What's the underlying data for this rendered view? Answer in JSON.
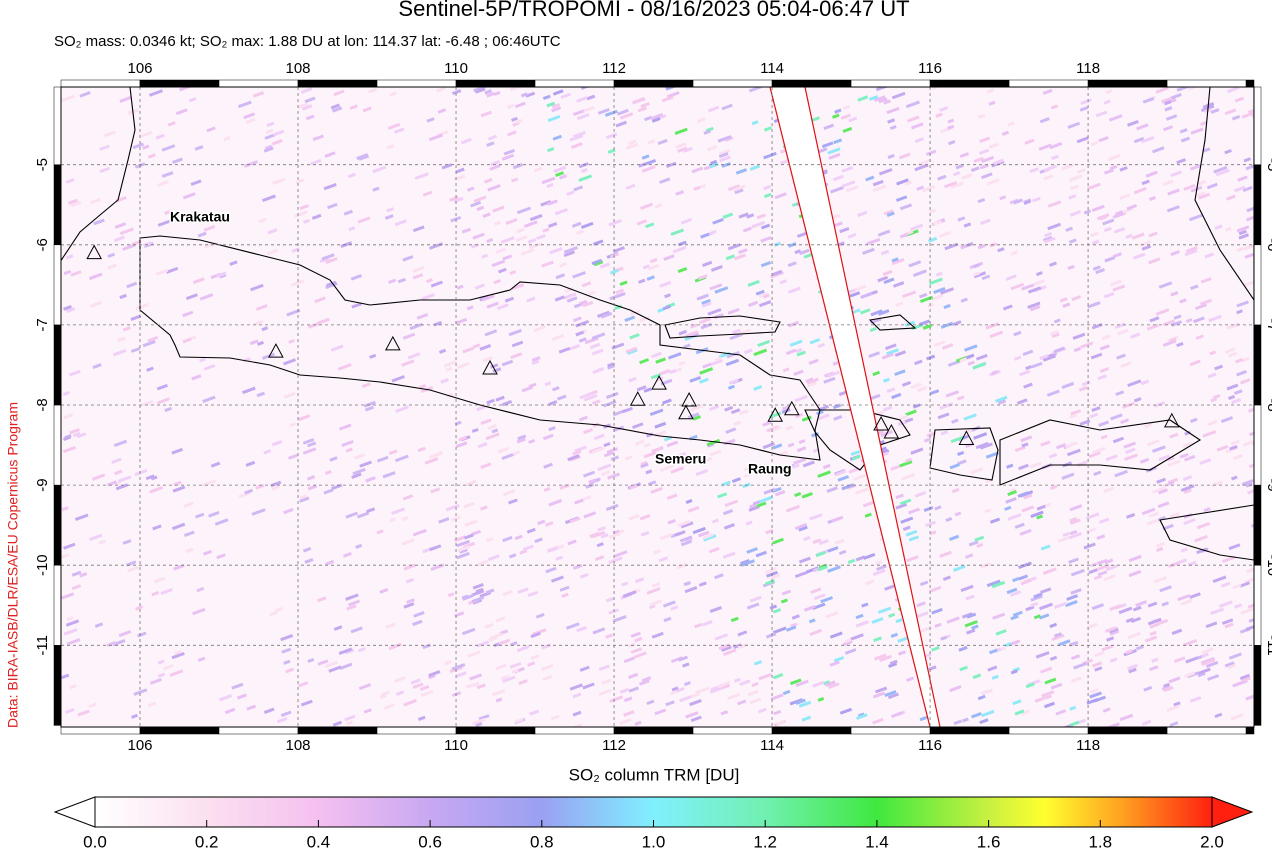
{
  "header": {
    "title": "Sentinel-5P/TROPOMI - 08/16/2023 05:04-06:47 UT",
    "subtitle": "SO₂ mass: 0.0346 kt; SO₂ max: 1.88 DU at lon: 114.37 lat: -6.48 ; 06:46UTC"
  },
  "credit": "Data: BIRA-IASB/DLR/ESA/EU Copernicus Program",
  "map": {
    "xlim": [
      105,
      120.1
    ],
    "ylim": [
      -12.02,
      -4.03
    ],
    "xticks": [
      106,
      108,
      110,
      112,
      114,
      116,
      118
    ],
    "yticks": [
      -5,
      -6,
      -7,
      -8,
      -9,
      -10,
      -11
    ],
    "volcanoes": [
      {
        "lon": 105.42,
        "lat": -6.11
      },
      {
        "lon": 107.72,
        "lat": -7.34
      },
      {
        "lon": 109.2,
        "lat": -7.25
      },
      {
        "lon": 110.43,
        "lat": -7.55
      },
      {
        "lon": 112.3,
        "lat": -7.94
      },
      {
        "lon": 112.57,
        "lat": -7.74
      },
      {
        "lon": 112.95,
        "lat": -7.95
      },
      {
        "lon": 112.91,
        "lat": -8.11
      },
      {
        "lon": 114.04,
        "lat": -8.14
      },
      {
        "lon": 114.25,
        "lat": -8.06
      },
      {
        "lon": 115.38,
        "lat": -8.25
      },
      {
        "lon": 115.51,
        "lat": -8.35
      },
      {
        "lon": 116.46,
        "lat": -8.43
      },
      {
        "lon": 119.06,
        "lat": -8.21
      }
    ],
    "labels": [
      "Krakatau",
      "Semeru",
      "Raung"
    ]
  },
  "colorbar": {
    "label": "SO₂ column TRM [DU]",
    "lim": [
      0,
      2
    ],
    "ticks": [
      {
        "value": 0,
        "label": "0.0"
      },
      {
        "value": 0.2,
        "label": "0.2"
      },
      {
        "value": 0.4,
        "label": "0.4"
      },
      {
        "value": 0.6,
        "label": "0.6"
      },
      {
        "value": 0.8,
        "label": "0.8"
      },
      {
        "value": 1,
        "label": "1.0"
      },
      {
        "value": 1.2,
        "label": "1.2"
      },
      {
        "value": 1.4,
        "label": "1.4"
      },
      {
        "value": 1.6,
        "label": "1.6"
      },
      {
        "value": 1.8,
        "label": "1.8"
      },
      {
        "value": 2,
        "label": "2.0"
      }
    ]
  }
}
